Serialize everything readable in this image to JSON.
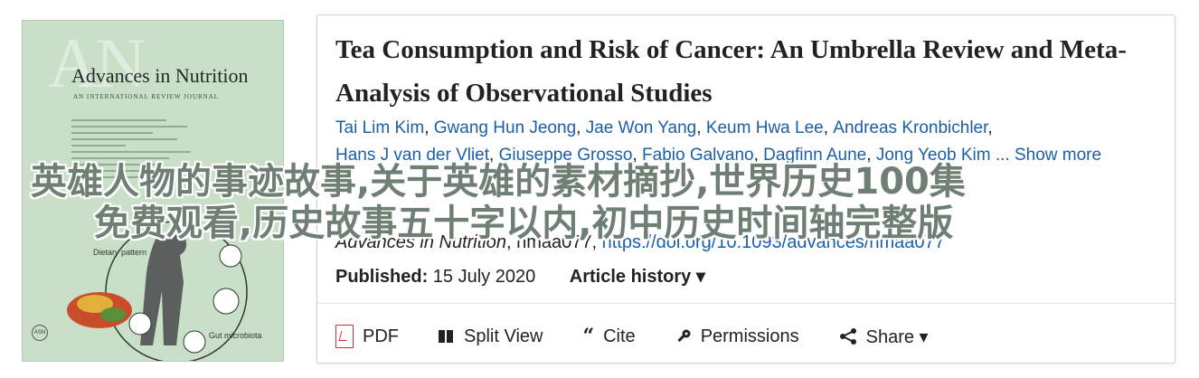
{
  "cover": {
    "monogram": "AN",
    "journal_name": "Advances in Nutrition",
    "subtitle": "AN INTERNATIONAL REVIEW JOURNAL",
    "figure_labels": {
      "diet": "Dietary pattern",
      "gut": "Gut microbiota"
    },
    "badge": "ASN"
  },
  "article": {
    "title": "Tea Consumption and Risk of Cancer: An Umbrella Review and Meta-Analysis of Observational Studies",
    "authors": [
      "Tai Lim Kim",
      "Gwang Hun Jeong",
      "Jae Won Yang",
      "Keum Hwa Lee",
      "Andreas Kronbichler",
      "Hans J van der Vliet",
      "Giuseppe Grosso",
      "Fabio Galvano",
      "Dagfinn Aune",
      "Jong Yeob Kim"
    ],
    "show_more": "... Show more",
    "journal": "Advances in Nutrition",
    "article_id": ", nmaa077, ",
    "doi": "https://doi.org/10.1093/advances/nmaa077",
    "published_label": "Published:",
    "published_date": "15 July 2020",
    "article_history": "Article history ▾"
  },
  "toolbar": {
    "pdf": "PDF",
    "split_view": "Split View",
    "cite": "Cite",
    "permissions": "Permissions",
    "share": "Share ▾"
  },
  "overlay": {
    "line1": "英雄人物的事迹故事,关于英雄的素材摘抄,世界历史100集",
    "line2": "免费观看,历史故事五十字以内,初中历史时间轴完整版"
  },
  "colors": {
    "link": "#1a5fa8",
    "pdf_red": "#d32f2f",
    "cover_bg": "#c9dfc7"
  }
}
